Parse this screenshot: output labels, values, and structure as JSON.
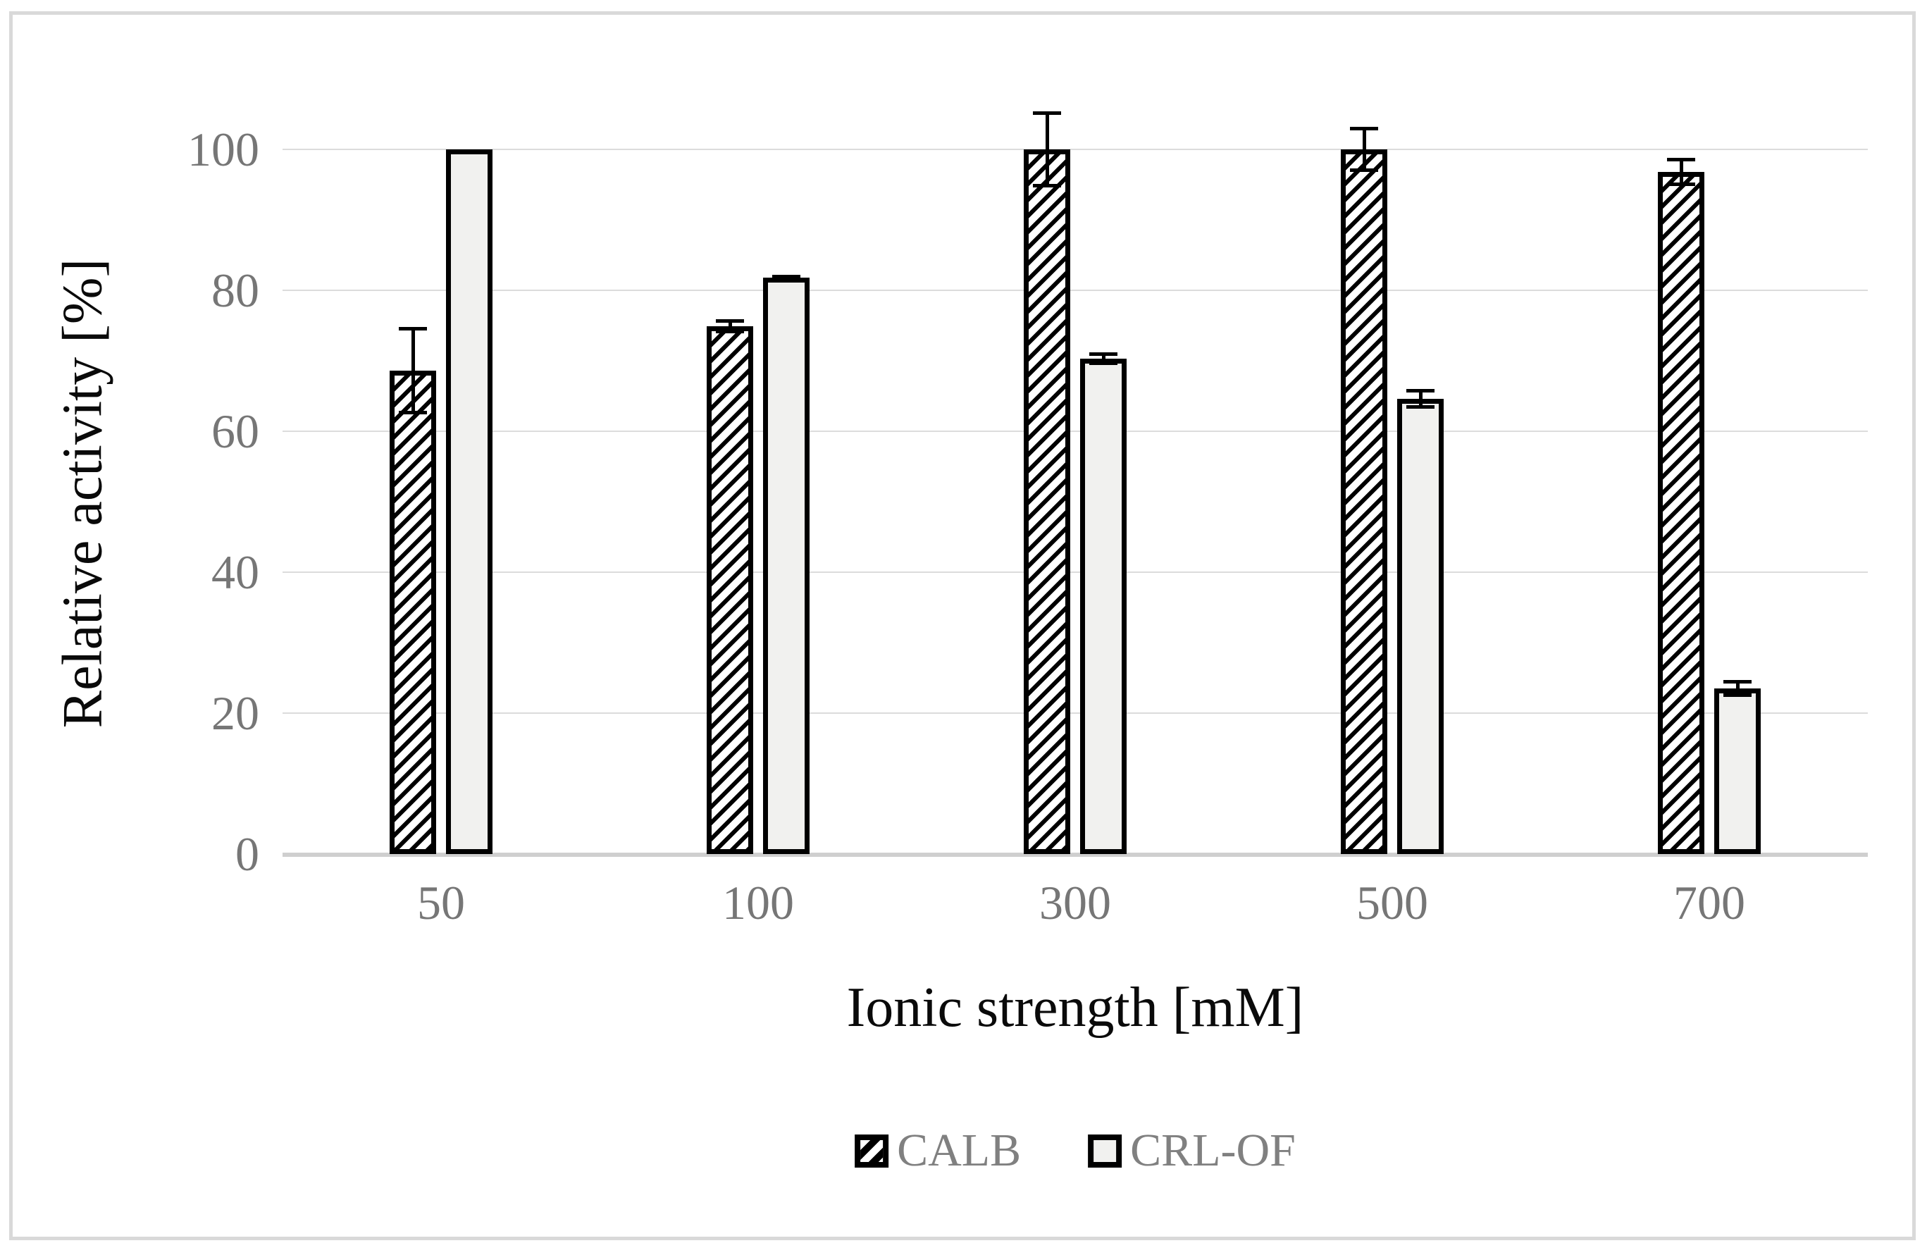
{
  "chart_data": {
    "type": "bar",
    "title": "",
    "xlabel": "Ionic strength [mM]",
    "ylabel": "Relative activity [%]",
    "categories": [
      "50",
      "100",
      "300",
      "500",
      "700"
    ],
    "series": [
      {
        "name": "CALB",
        "pattern": "diagonal-hatch",
        "fill": "#ffffff",
        "hatch_color": "#000000",
        "border": "#000000",
        "values": [
          68.6,
          74.9,
          100,
          100,
          96.8
        ],
        "errors": [
          6.2,
          1.0,
          5.4,
          3.2,
          2.0
        ]
      },
      {
        "name": "CRL-OF",
        "pattern": "solid",
        "fill": "#f1f1ef",
        "border": "#000000",
        "values": [
          100,
          81.8,
          70.3,
          64.6,
          23.5
        ],
        "errors": [
          0,
          0.4,
          0.9,
          1.4,
          1.2
        ]
      }
    ],
    "y_ticks": [
      0,
      20,
      40,
      60,
      80,
      100
    ],
    "ylim": [
      0,
      100
    ],
    "grid": "horizontal-light",
    "error_bars": "vertical-with-caps",
    "legend_position": "bottom-center",
    "colors": {
      "gridline": "#dcdcdc",
      "axis_line": "#cfcfcf",
      "tick_label": "#767676",
      "axis_title": "#0a0a0a",
      "legend_text": "#808080",
      "figure_border": "#d9d9d9",
      "background": "#ffffff"
    }
  }
}
